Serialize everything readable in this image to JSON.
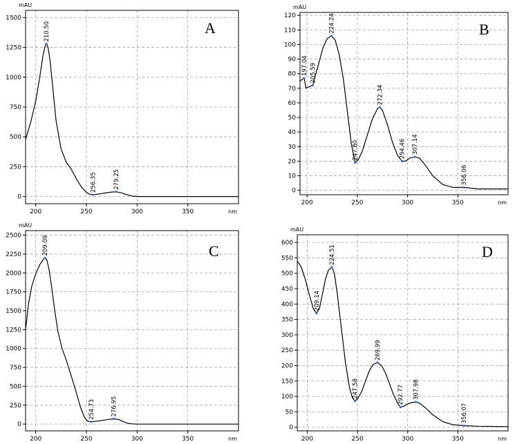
{
  "chart_data": [
    {
      "type": "line",
      "panel_label": "A",
      "y_unit": "mAU",
      "x_unit": "nm",
      "xlim": [
        190,
        400
      ],
      "ylim": [
        -60,
        1560
      ],
      "x_ticks": [
        200,
        250,
        300,
        350
      ],
      "y_ticks": [
        0,
        250,
        500,
        750,
        1000,
        1250,
        1500
      ],
      "grid": true,
      "peaks": [
        {
          "label": "210.50",
          "x": 210.5,
          "y": 1280
        },
        {
          "label": "256.35",
          "x": 256.35,
          "y": 15
        },
        {
          "label": "279.25",
          "x": 279.25,
          "y": 40
        }
      ],
      "series": [
        {
          "x": [
            190,
            195,
            200,
            204,
            207,
            209,
            210.5,
            212,
            214,
            217,
            220,
            225,
            230,
            235,
            240,
            245,
            250,
            253,
            256.35,
            260,
            265,
            270,
            275,
            279.25,
            285,
            290,
            295,
            300,
            310,
            400
          ],
          "values": [
            480,
            620,
            800,
            1000,
            1170,
            1255,
            1280,
            1255,
            1150,
            900,
            640,
            400,
            290,
            230,
            150,
            80,
            35,
            20,
            15,
            18,
            25,
            32,
            38,
            40,
            30,
            15,
            5,
            0,
            0,
            0
          ]
        }
      ]
    },
    {
      "type": "line",
      "panel_label": "B",
      "y_unit": "mAU",
      "x_unit": "nm",
      "xlim": [
        193,
        400
      ],
      "ylim": [
        -3,
        122
      ],
      "x_ticks": [
        200,
        250,
        300,
        350
      ],
      "y_ticks": [
        0,
        10,
        20,
        30,
        40,
        50,
        60,
        70,
        80,
        90,
        100,
        110,
        120
      ],
      "grid": true,
      "peaks": [
        {
          "label": "197.04",
          "x": 197.04,
          "y": 77
        },
        {
          "label": "205.59",
          "x": 205.59,
          "y": 72
        },
        {
          "label": "224.24",
          "x": 224.24,
          "y": 106
        },
        {
          "label": "247.80",
          "x": 247.8,
          "y": 19
        },
        {
          "label": "272.34",
          "x": 272.34,
          "y": 57
        },
        {
          "label": "294.46",
          "x": 294.46,
          "y": 20
        },
        {
          "label": "307.14",
          "x": 307.14,
          "y": 23
        },
        {
          "label": "356.06",
          "x": 356.06,
          "y": 2
        }
      ],
      "series": [
        {
          "x": [
            193,
            195,
            197.04,
            199,
            202,
            205.59,
            208,
            212,
            216,
            220,
            224.24,
            228,
            232,
            236,
            240,
            244,
            247.8,
            251,
            255,
            260,
            265,
            270,
            272.34,
            275,
            280,
            285,
            290,
            294.46,
            298,
            302,
            307.14,
            312,
            318,
            325,
            335,
            345,
            356.06,
            370,
            400
          ],
          "values": [
            75,
            76,
            77,
            70,
            71,
            72,
            78,
            88,
            98,
            104,
            106,
            103,
            93,
            77,
            55,
            32,
            19,
            21,
            27,
            38,
            49,
            56,
            57,
            55,
            45,
            33,
            24,
            20,
            20,
            22,
            23,
            22,
            17,
            10,
            4,
            2,
            2,
            1,
            1
          ]
        }
      ]
    },
    {
      "type": "line",
      "panel_label": "C",
      "y_unit": "mAU",
      "x_unit": "nm",
      "xlim": [
        190,
        400
      ],
      "ylim": [
        -90,
        2560
      ],
      "x_ticks": [
        200,
        250,
        300,
        350
      ],
      "y_ticks": [
        0,
        250,
        500,
        750,
        1000,
        1250,
        1500,
        1750,
        2000,
        2250,
        2500
      ],
      "grid": true,
      "peaks": [
        {
          "label": "209.09",
          "x": 209.09,
          "y": 2200
        },
        {
          "label": "254.73",
          "x": 254.73,
          "y": 30
        },
        {
          "label": "276.95",
          "x": 276.95,
          "y": 70
        }
      ],
      "series": [
        {
          "x": [
            190,
            193,
            196,
            200,
            204,
            207,
            209.09,
            211,
            213,
            216,
            219,
            222,
            226,
            230,
            235,
            240,
            244,
            248,
            251,
            254.73,
            258,
            262,
            266,
            270,
            276.95,
            282,
            286,
            290,
            295,
            300,
            400
          ],
          "values": [
            1250,
            1600,
            1820,
            1990,
            2110,
            2170,
            2200,
            2170,
            2060,
            1790,
            1480,
            1220,
            1000,
            850,
            640,
            420,
            230,
            90,
            40,
            30,
            35,
            42,
            50,
            58,
            70,
            60,
            35,
            12,
            3,
            0,
            0
          ]
        }
      ]
    },
    {
      "type": "line",
      "panel_label": "D",
      "y_unit": "mAU",
      "x_unit": "nm",
      "xlim": [
        190,
        400
      ],
      "ylim": [
        -12,
        625
      ],
      "x_ticks": [
        200,
        250,
        300,
        350
      ],
      "y_ticks": [
        0,
        50,
        100,
        150,
        200,
        250,
        300,
        350,
        400,
        450,
        500,
        550,
        600
      ],
      "grid": true,
      "peaks": [
        {
          "label": "209.14",
          "x": 209.14,
          "y": 370
        },
        {
          "label": "224.51",
          "x": 224.51,
          "y": 520
        },
        {
          "label": "247.58",
          "x": 247.58,
          "y": 85
        },
        {
          "label": "269.99",
          "x": 269.99,
          "y": 210
        },
        {
          "label": "292.77",
          "x": 292.77,
          "y": 65
        },
        {
          "label": "307.98",
          "x": 307.98,
          "y": 82
        },
        {
          "label": "356.07",
          "x": 356.07,
          "y": 5
        }
      ],
      "series": [
        {
          "x": [
            190,
            194,
            198,
            202,
            206,
            209.14,
            212,
            215,
            218,
            221,
            224.51,
            227,
            230,
            234,
            238,
            242,
            245,
            247.58,
            250,
            254,
            258,
            262,
            266,
            269.99,
            274,
            278,
            282,
            286,
            290,
            292.77,
            296,
            300,
            304,
            307.98,
            312,
            318,
            325,
            335,
            345,
            356.07,
            370,
            400
          ],
          "values": [
            540,
            520,
            480,
            430,
            385,
            370,
            385,
            430,
            480,
            510,
            520,
            500,
            430,
            320,
            210,
            130,
            95,
            85,
            92,
            115,
            150,
            185,
            205,
            210,
            200,
            175,
            140,
            105,
            78,
            65,
            68,
            76,
            80,
            82,
            78,
            62,
            40,
            18,
            8,
            5,
            3,
            2
          ]
        }
      ]
    }
  ]
}
